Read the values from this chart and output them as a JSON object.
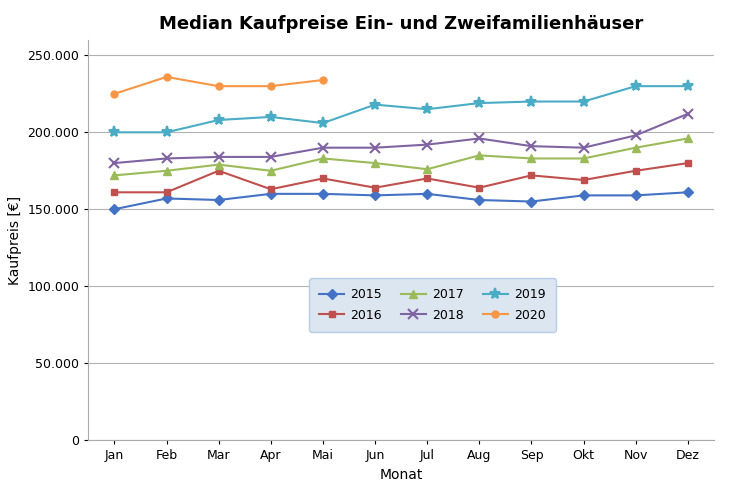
{
  "title": "Median Kaufpreise Ein- und Zweifamilienhäuser",
  "xlabel": "Monat",
  "ylabel": "Kaufpreis [€]",
  "months": [
    "Jan",
    "Feb",
    "Mar",
    "Apr",
    "Mai",
    "Jun",
    "Jul",
    "Aug",
    "Sep",
    "Okt",
    "Nov",
    "Dez"
  ],
  "series": {
    "2015": {
      "values": [
        150000,
        157000,
        156000,
        160000,
        160000,
        159000,
        160000,
        156000,
        155000,
        159000,
        159000,
        161000
      ],
      "color": "#4472C4",
      "marker": "D",
      "markersize": 5
    },
    "2016": {
      "values": [
        161000,
        161000,
        175000,
        163000,
        170000,
        164000,
        170000,
        164000,
        172000,
        169000,
        175000,
        180000
      ],
      "color": "#C0504D",
      "marker": "s",
      "markersize": 5
    },
    "2017": {
      "values": [
        172000,
        175000,
        179000,
        175000,
        183000,
        180000,
        176000,
        185000,
        183000,
        183000,
        190000,
        196000
      ],
      "color": "#9BBB59",
      "marker": "^",
      "markersize": 6
    },
    "2018": {
      "values": [
        180000,
        183000,
        184000,
        184000,
        190000,
        190000,
        192000,
        196000,
        191000,
        190000,
        198000,
        212000
      ],
      "color": "#8064A2",
      "marker": "x",
      "markersize": 7
    },
    "2019": {
      "values": [
        200000,
        200000,
        208000,
        210000,
        206000,
        218000,
        215000,
        219000,
        220000,
        220000,
        230000,
        230000
      ],
      "color": "#4BACC6",
      "marker": "*",
      "markersize": 8
    },
    "2020": {
      "values": [
        225000,
        236000,
        230000,
        230000,
        234000,
        null,
        null,
        null,
        null,
        null,
        null,
        null
      ],
      "color": "#F79646",
      "marker": "o",
      "markersize": 5
    }
  },
  "ylim": [
    0,
    260000
  ],
  "yticks": [
    0,
    50000,
    100000,
    150000,
    200000,
    250000
  ],
  "background_color": "#ffffff",
  "legend_bg": "#dce6f1",
  "legend_edge": "#b8cce4",
  "title_fontsize": 13,
  "axis_label_fontsize": 10,
  "tick_fontsize": 9,
  "legend_fontsize": 9,
  "linewidth": 1.5
}
